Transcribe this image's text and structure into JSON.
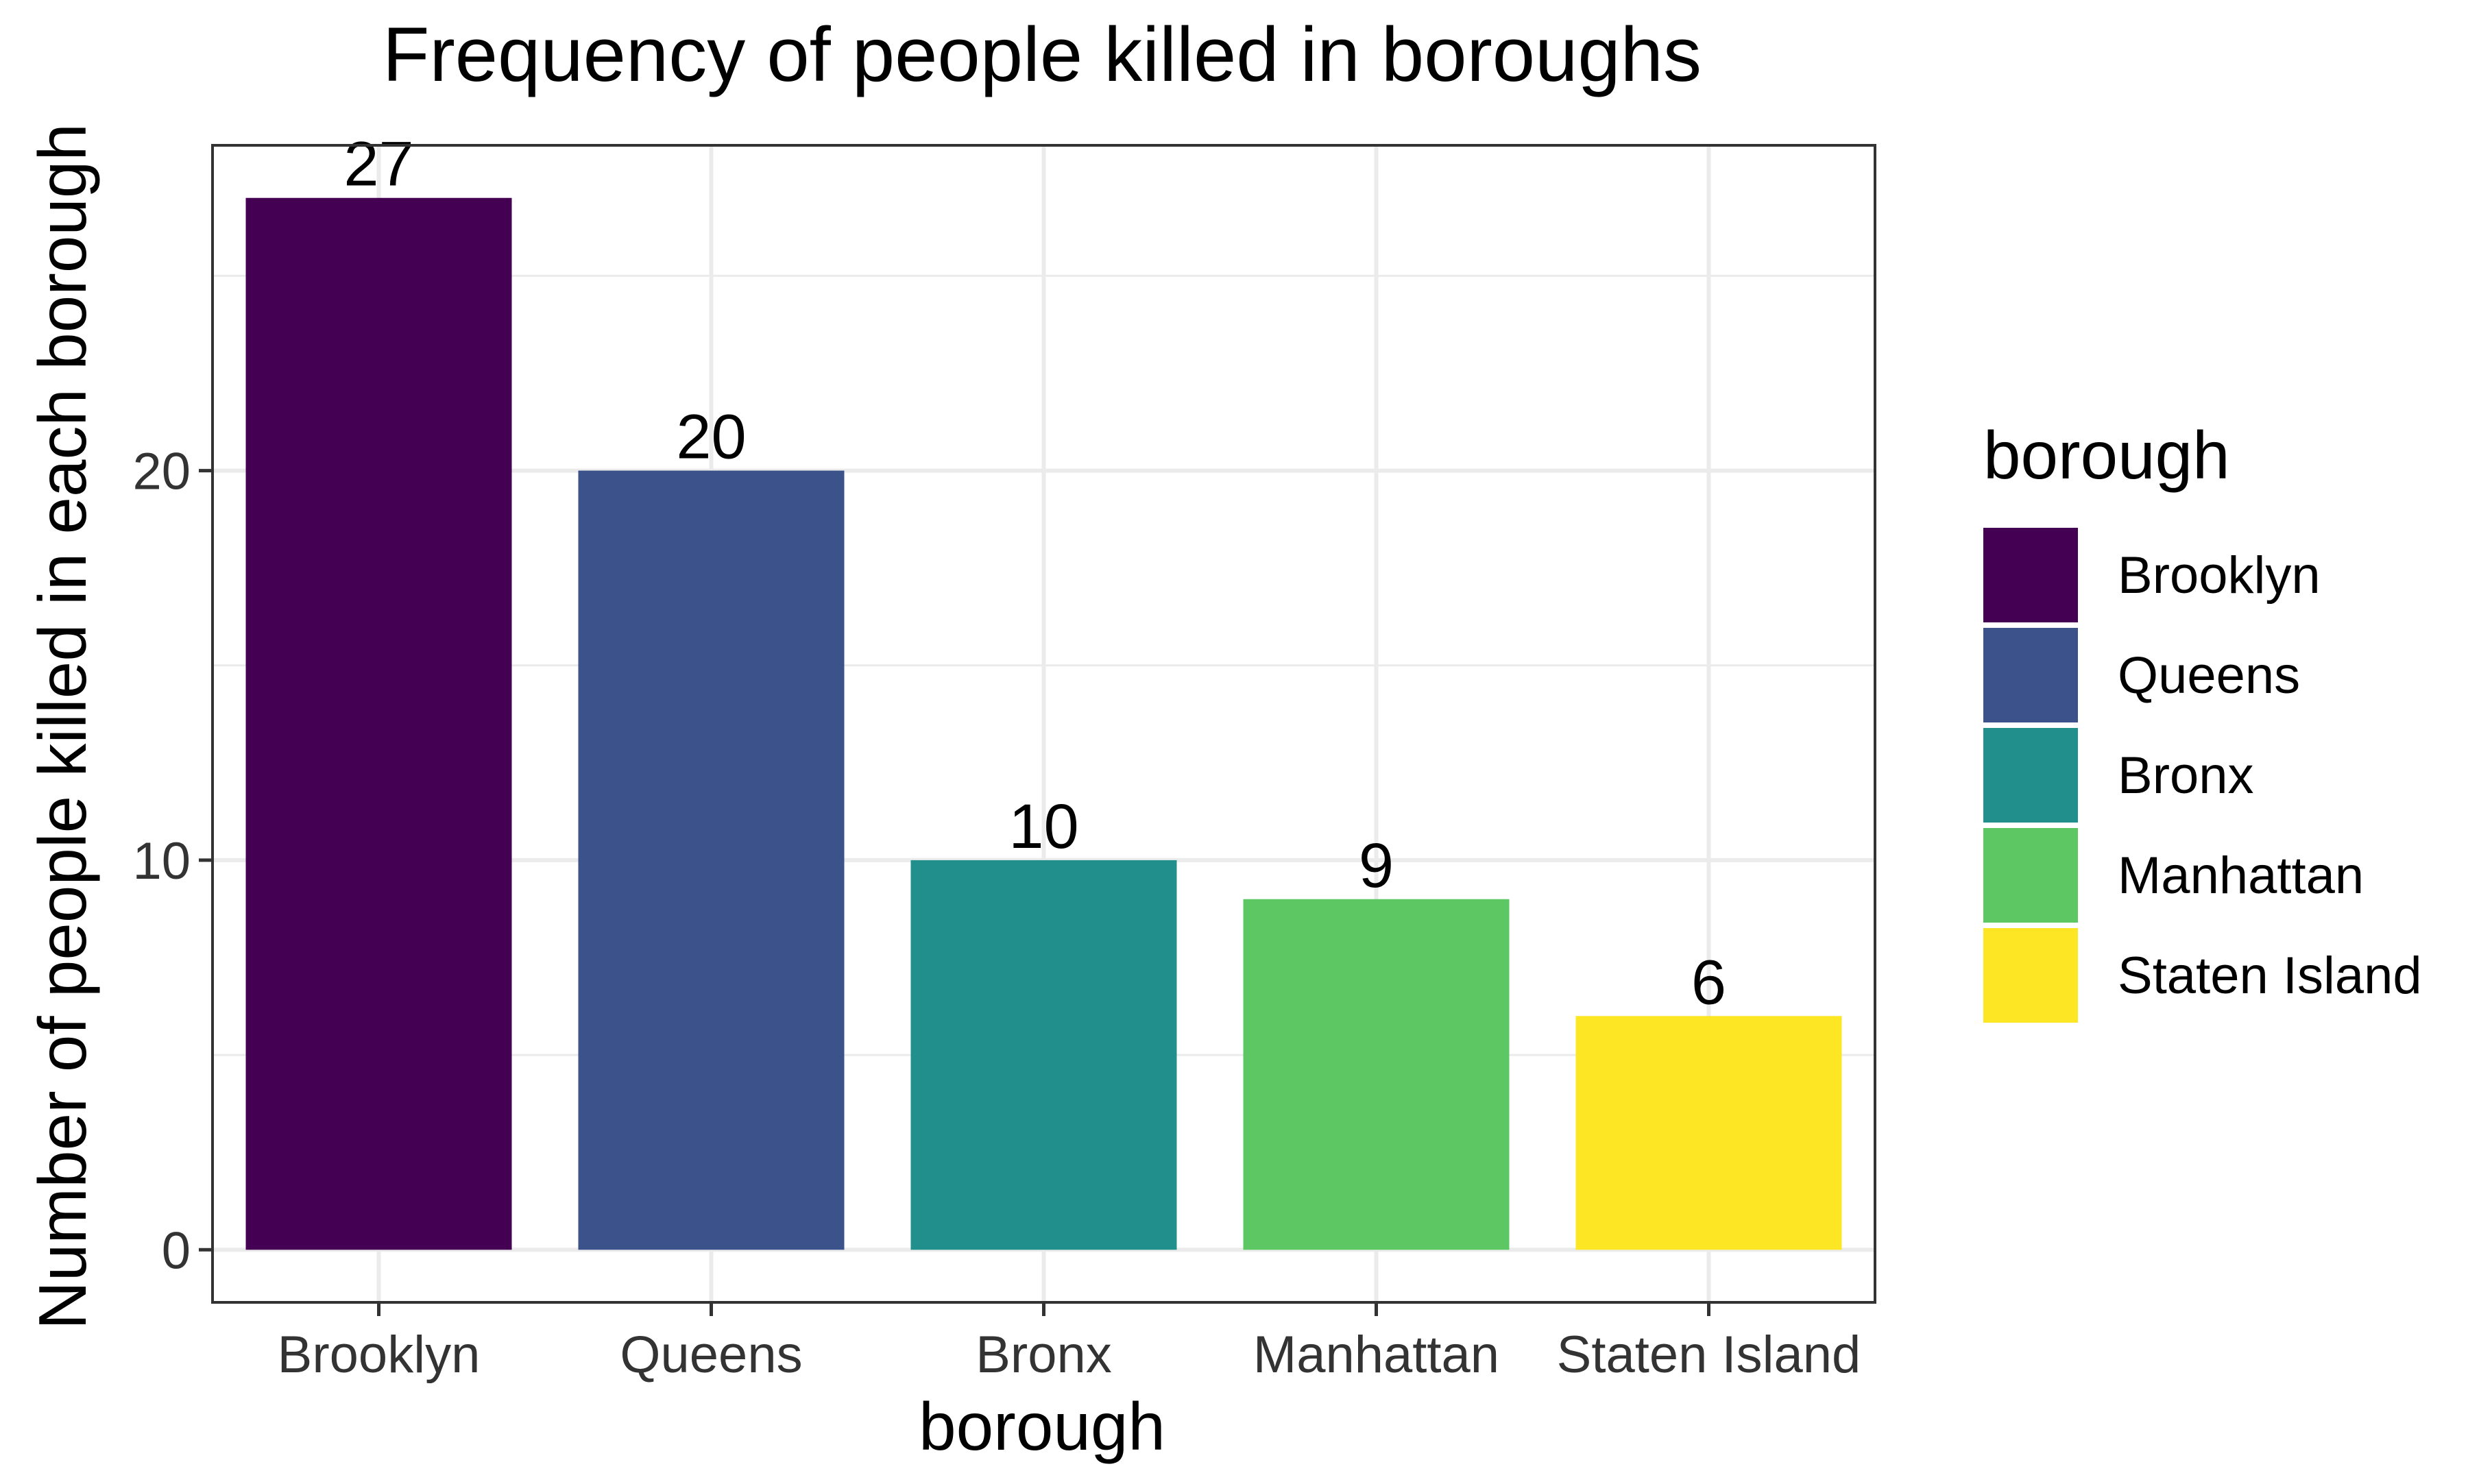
{
  "chart_data": {
    "type": "bar",
    "title": "Frequency of people killed in boroughs",
    "xlabel": "borough",
    "ylabel": "Number of people killed in each borough",
    "categories": [
      "Brooklyn",
      "Queens",
      "Bronx",
      "Manhattan",
      "Staten Island"
    ],
    "values": [
      27,
      20,
      10,
      9,
      6
    ],
    "data_labels": [
      "27",
      "20",
      "10",
      "9",
      "6"
    ],
    "colors": [
      "#440154",
      "#3b528b",
      "#21908c",
      "#5dc863",
      "#fde725"
    ],
    "ylim": [
      -1.35,
      28.35
    ],
    "yticks": [
      0,
      10,
      20
    ],
    "ytick_labels": [
      "0",
      "10",
      "20"
    ],
    "y_minor_gridlines": [
      5,
      15,
      25
    ],
    "grid": true,
    "legend": {
      "title": "borough",
      "position": "right",
      "entries": [
        "Brooklyn",
        "Queens",
        "Bronx",
        "Manhattan",
        "Staten Island"
      ]
    }
  }
}
